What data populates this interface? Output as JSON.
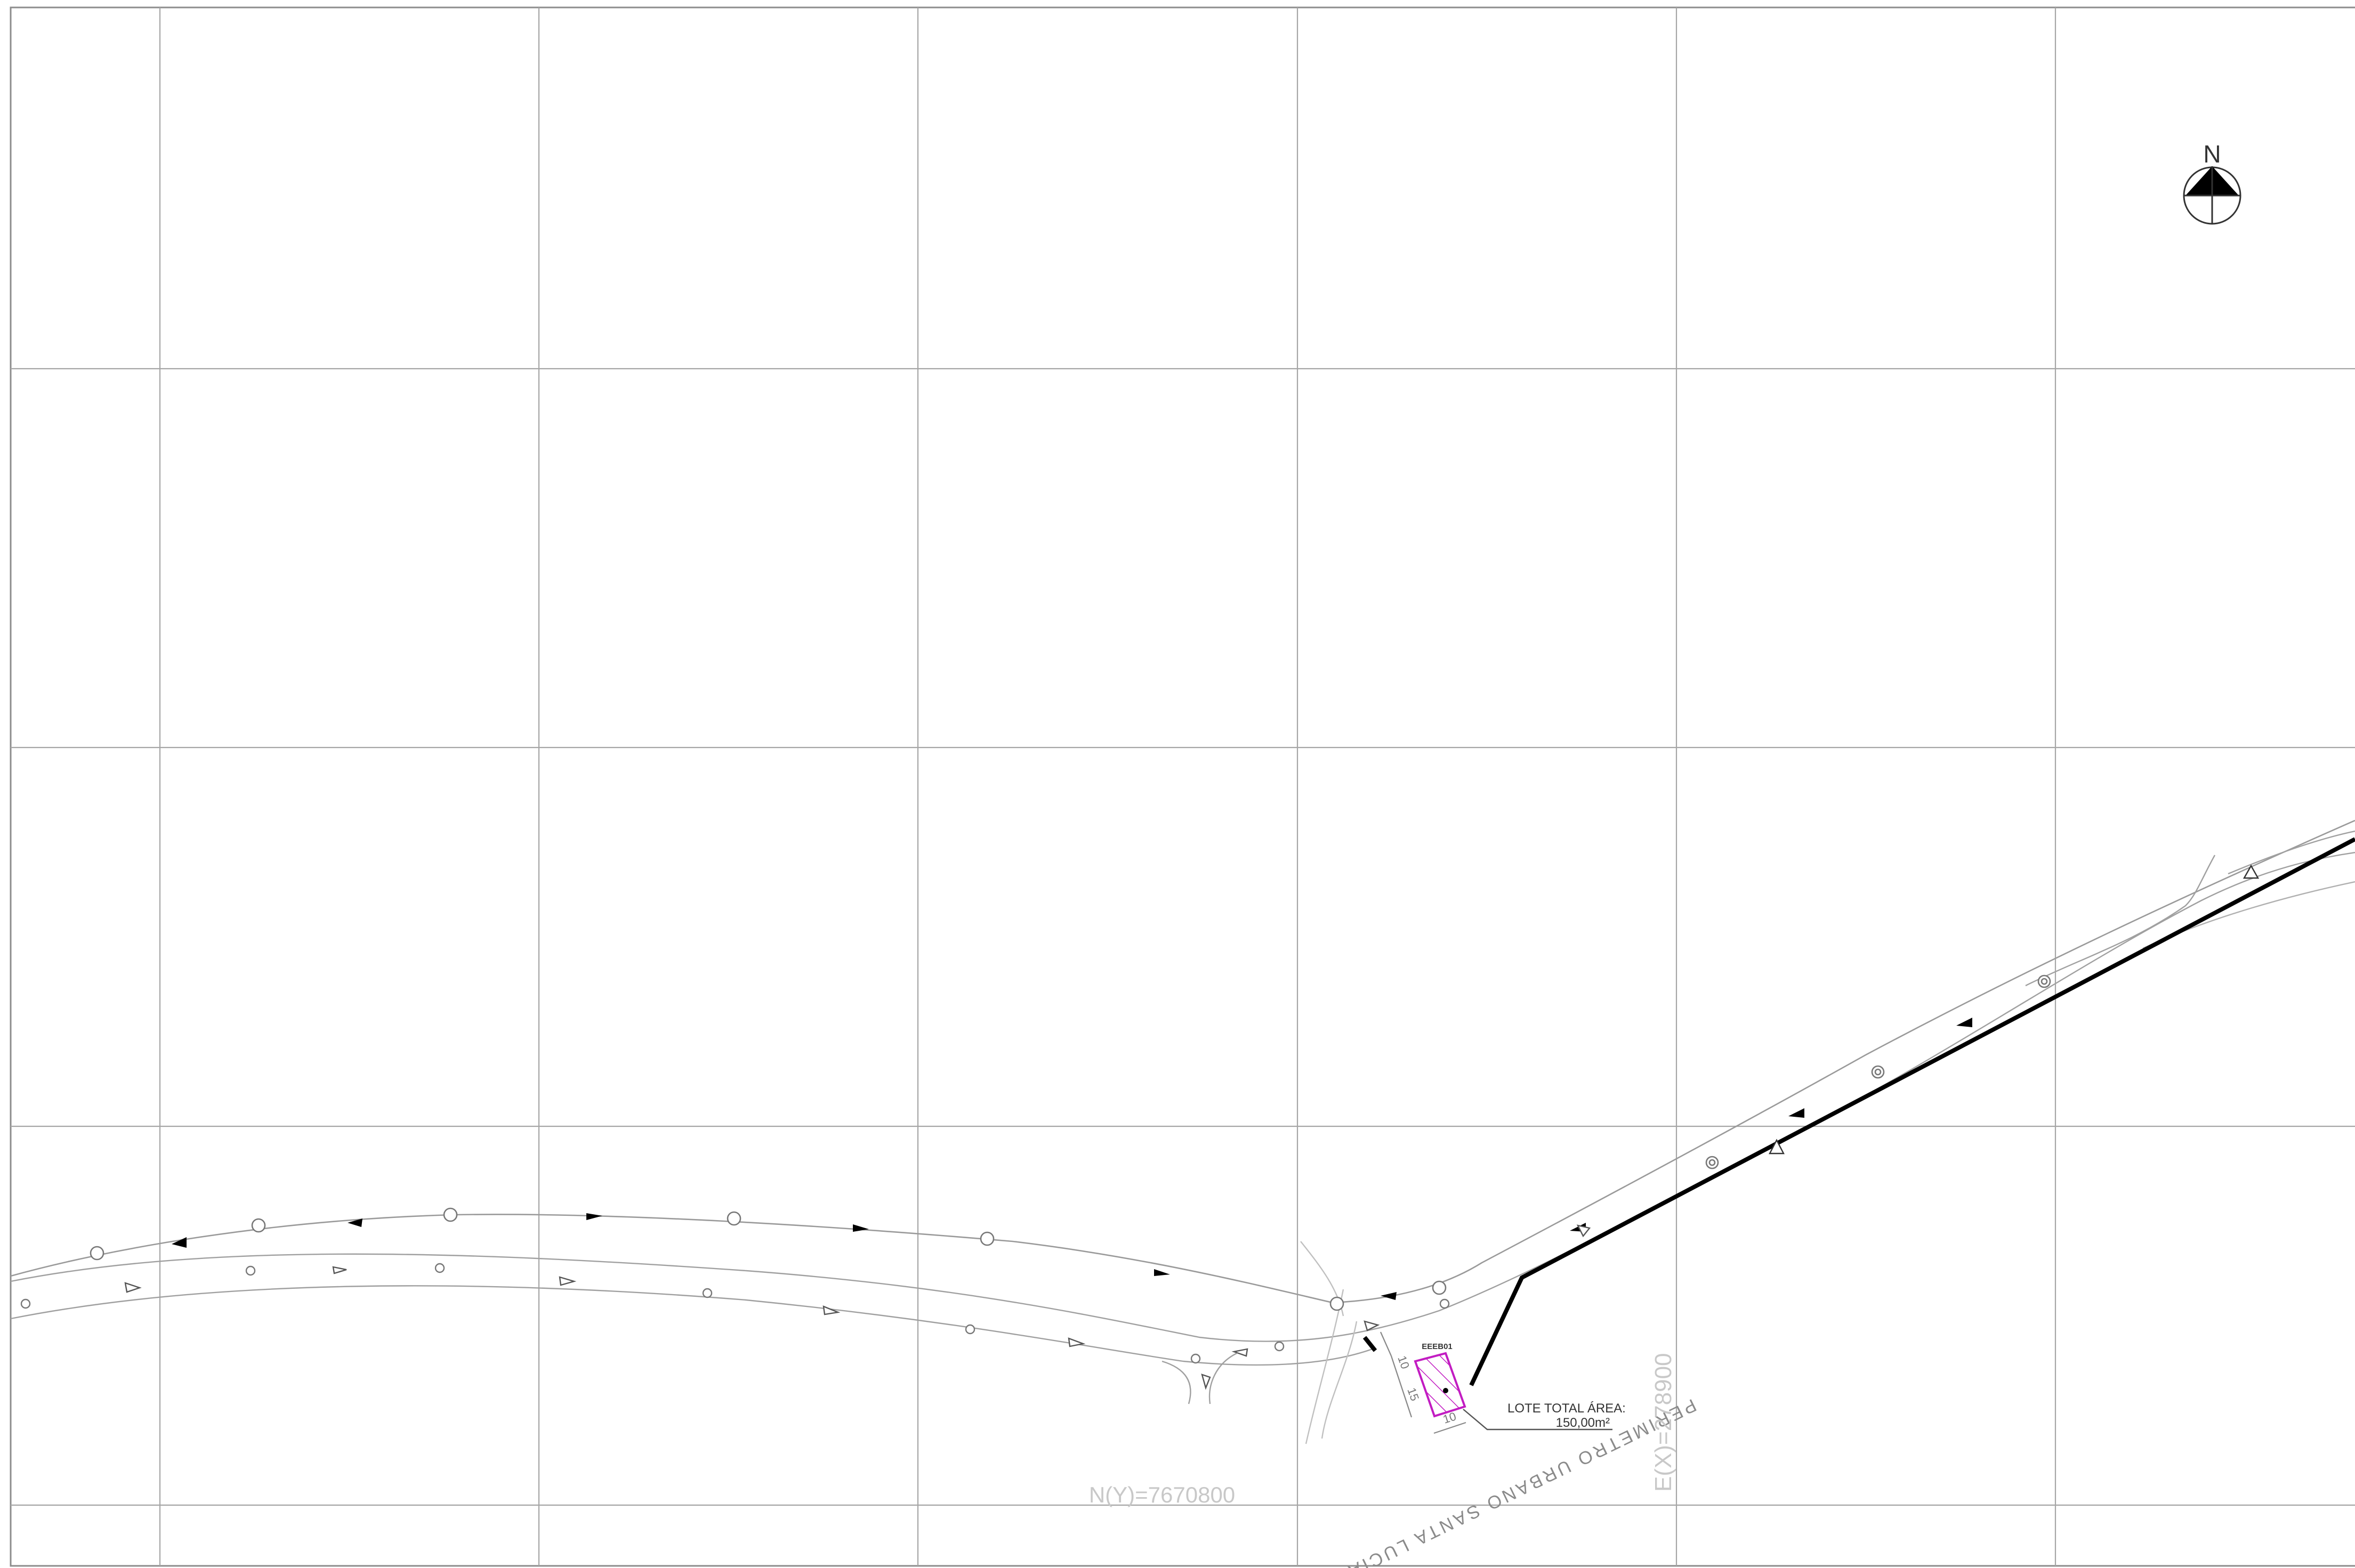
{
  "drawing": {
    "north_arrow": {
      "label": "N"
    },
    "lot": {
      "id": "EEEB01",
      "area_label": "LOTE TOTAL ÁREA:",
      "area_value": "150,00m²",
      "dim_side": "10",
      "dim_front": "15",
      "dim_back": "10",
      "hatch_color": "#c21cc2"
    },
    "grid_labels": {
      "northing": "N(Y)=7670800",
      "easting": "E(X)=278900"
    },
    "perimeter_label": "PERIMETRO URBANO SANTA LUCIA",
    "colors": {
      "grid": "#a6a6a6",
      "road": "#9a9a9a",
      "boundary": "#000000",
      "grid_label": "#c8c8c8",
      "lot_hatch": "#c21cc2"
    },
    "icons": {
      "manhole": "circle-marker-icon",
      "flow_arrow": "flow-arrow-icon",
      "triangle": "triangle-marker-icon",
      "benchmark": "benchmark-icon"
    }
  }
}
